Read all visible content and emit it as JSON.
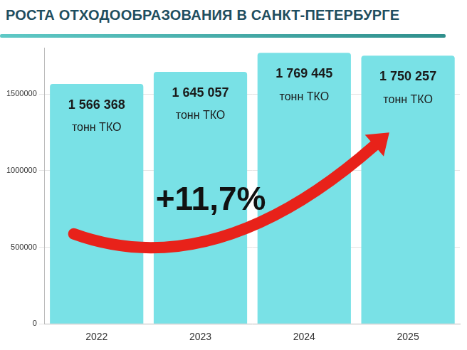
{
  "chart_data": {
    "type": "bar",
    "title": "РОСТА ОТХОДООБРАЗОВАНИЯ В САНКТ-ПЕТЕРБУРГЕ",
    "categories": [
      "2022",
      "2023",
      "2024",
      "2025"
    ],
    "values": [
      1566368,
      1645057,
      1769445,
      1750257
    ],
    "value_labels": [
      "1 566 368 тонн ТКО",
      "1 645 057 тонн ТКО",
      "1 769 445 тонн ТКО",
      "1 750 257 тонн ТКО"
    ],
    "data_labels": true,
    "color": "#79e1e6",
    "ylim": [
      0,
      1800000
    ],
    "yticks": [
      0,
      500000,
      1000000,
      1500000
    ],
    "grid": true,
    "annotations": [
      "+11,7%"
    ]
  }
}
